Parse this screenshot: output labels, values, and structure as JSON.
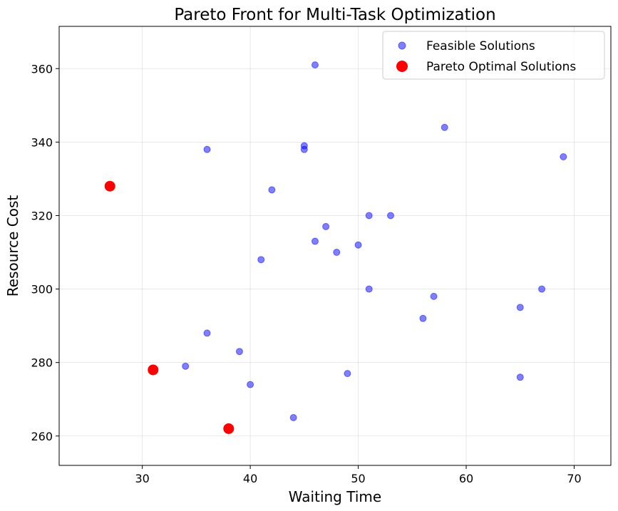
{
  "chart_data": {
    "type": "scatter",
    "title": "Pareto Front for Multi-Task Optimization",
    "xlabel": "Waiting Time",
    "ylabel": "Resource Cost",
    "xlim": [
      22.3,
      73.4
    ],
    "ylim": [
      252,
      371.5
    ],
    "xticks": [
      30,
      40,
      50,
      60,
      70
    ],
    "yticks": [
      260,
      280,
      300,
      320,
      340,
      360
    ],
    "grid": true,
    "legend_position": "top-right",
    "series": [
      {
        "name": "Feasible Solutions",
        "color": "#0000ff",
        "points": [
          {
            "x": 46,
            "y": 361
          },
          {
            "x": 58,
            "y": 344
          },
          {
            "x": 36,
            "y": 338
          },
          {
            "x": 45,
            "y": 339
          },
          {
            "x": 45,
            "y": 338
          },
          {
            "x": 69,
            "y": 336
          },
          {
            "x": 42,
            "y": 327
          },
          {
            "x": 51,
            "y": 320
          },
          {
            "x": 53,
            "y": 320
          },
          {
            "x": 47,
            "y": 317
          },
          {
            "x": 46,
            "y": 313
          },
          {
            "x": 50,
            "y": 312
          },
          {
            "x": 48,
            "y": 310
          },
          {
            "x": 41,
            "y": 308
          },
          {
            "x": 51,
            "y": 300
          },
          {
            "x": 67,
            "y": 300
          },
          {
            "x": 57,
            "y": 298
          },
          {
            "x": 65,
            "y": 295
          },
          {
            "x": 56,
            "y": 292
          },
          {
            "x": 36,
            "y": 288
          },
          {
            "x": 39,
            "y": 283
          },
          {
            "x": 34,
            "y": 279
          },
          {
            "x": 49,
            "y": 277
          },
          {
            "x": 65,
            "y": 276
          },
          {
            "x": 40,
            "y": 274
          },
          {
            "x": 44,
            "y": 265
          }
        ]
      },
      {
        "name": "Pareto Optimal Solutions",
        "color": "#ff0000",
        "points": [
          {
            "x": 27,
            "y": 328
          },
          {
            "x": 31,
            "y": 278
          },
          {
            "x": 38,
            "y": 262
          }
        ]
      }
    ]
  }
}
